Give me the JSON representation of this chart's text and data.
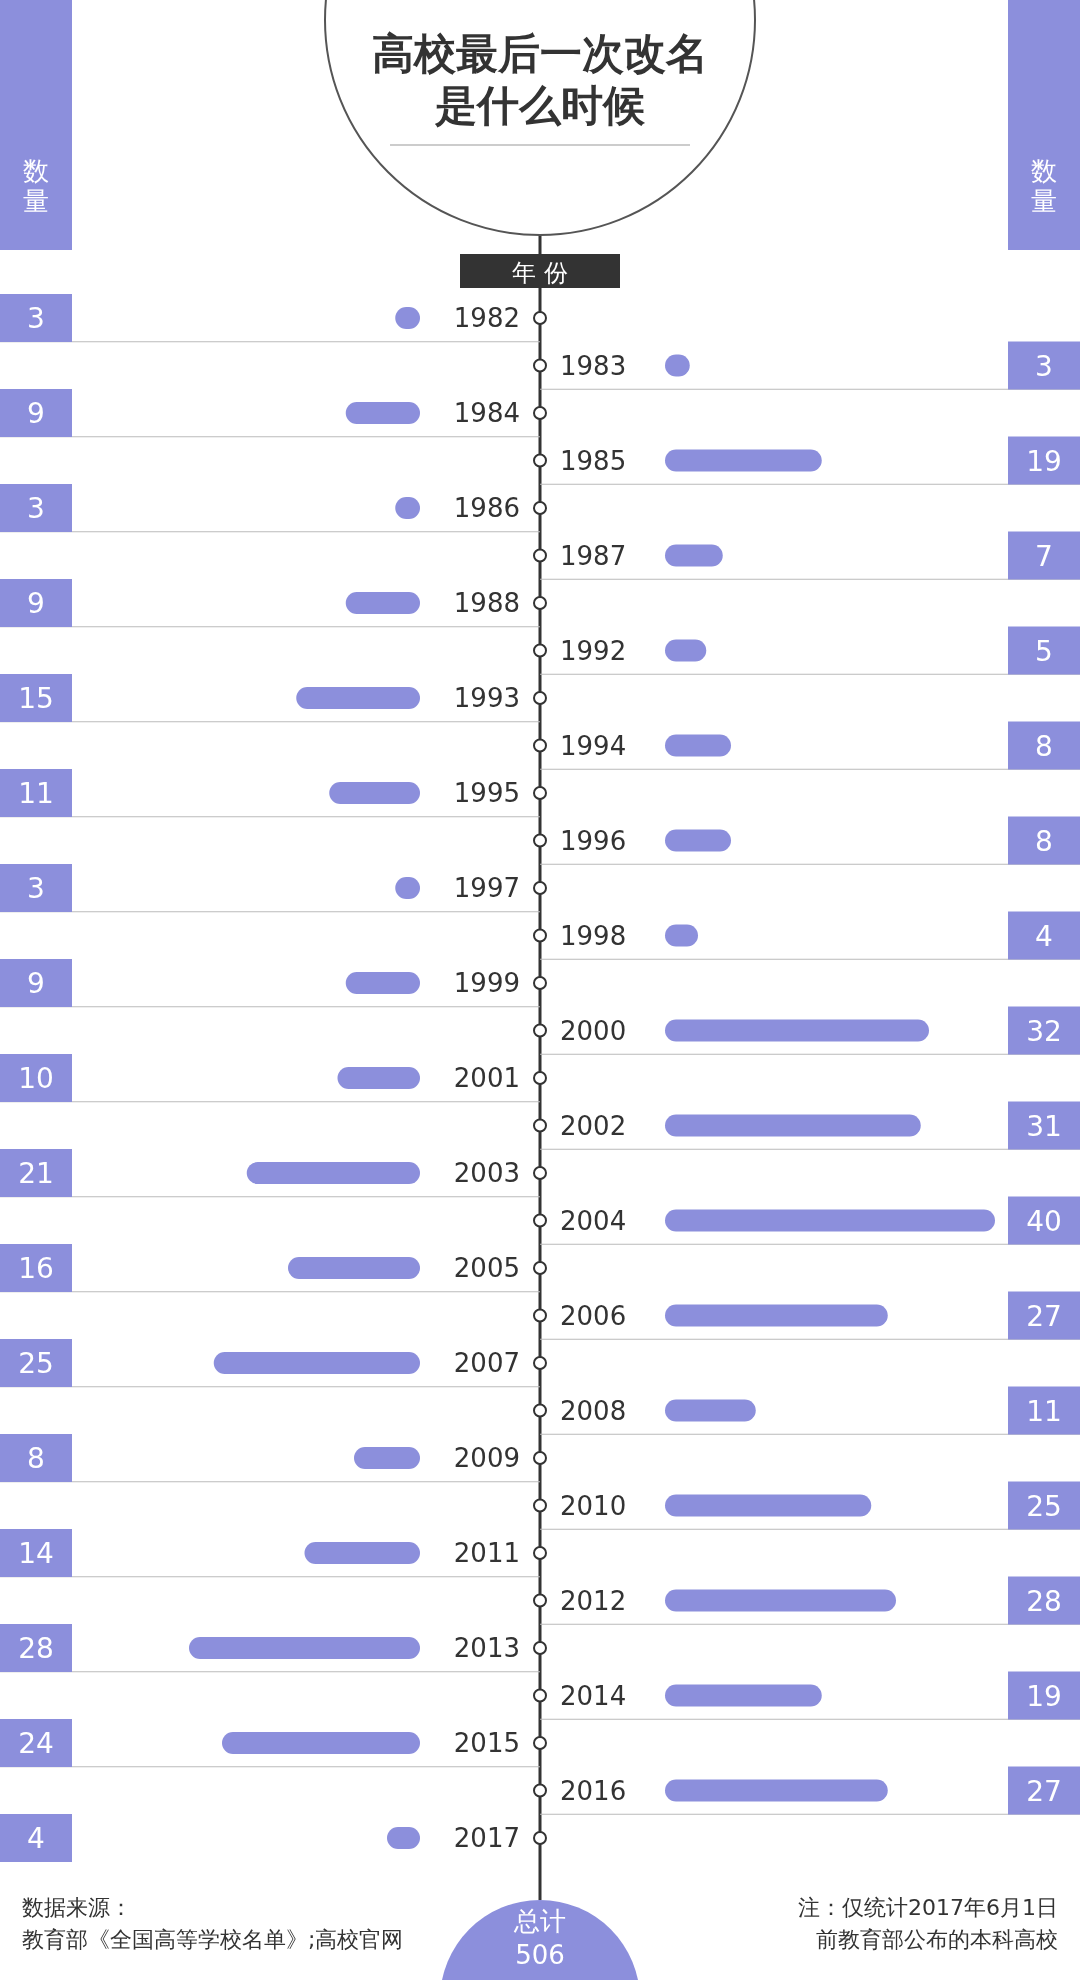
{
  "chart_data": [
    {
      "type": "bar",
      "orientation": "horizontal",
      "title": "高校最后一次改名是什么时候",
      "xlabel": "数量",
      "ylabel": "年份",
      "color": "#8c8fdc",
      "data_labels": true,
      "categories": [
        "1982",
        "1984",
        "1986",
        "1988",
        "1993",
        "1995",
        "1997",
        "1999",
        "2001",
        "2003",
        "2005",
        "2007",
        "2009",
        "2011",
        "2013",
        "2015",
        "2017"
      ],
      "values": [
        3,
        9,
        3,
        9,
        15,
        11,
        3,
        9,
        10,
        21,
        16,
        25,
        8,
        14,
        28,
        24,
        4
      ],
      "annotations": [
        "数据来源：教育部《全国高等学校名单》;高校官网",
        "注：仅统计2017年6月1日前教育部公布的本科高校",
        "总计506"
      ]
    },
    {
      "type": "bar",
      "orientation": "horizontal",
      "xlabel": "数量",
      "color": "#8c8fdc",
      "data_labels": true,
      "categories": [
        "1983",
        "1985",
        "1987",
        "1992",
        "1994",
        "1996",
        "1998",
        "2000",
        "2002",
        "2004",
        "2006",
        "2008",
        "2010",
        "2012",
        "2014",
        "2016"
      ],
      "values": [
        3,
        19,
        7,
        5,
        8,
        8,
        4,
        32,
        31,
        40,
        27,
        11,
        25,
        28,
        19,
        27
      ]
    }
  ]
}
